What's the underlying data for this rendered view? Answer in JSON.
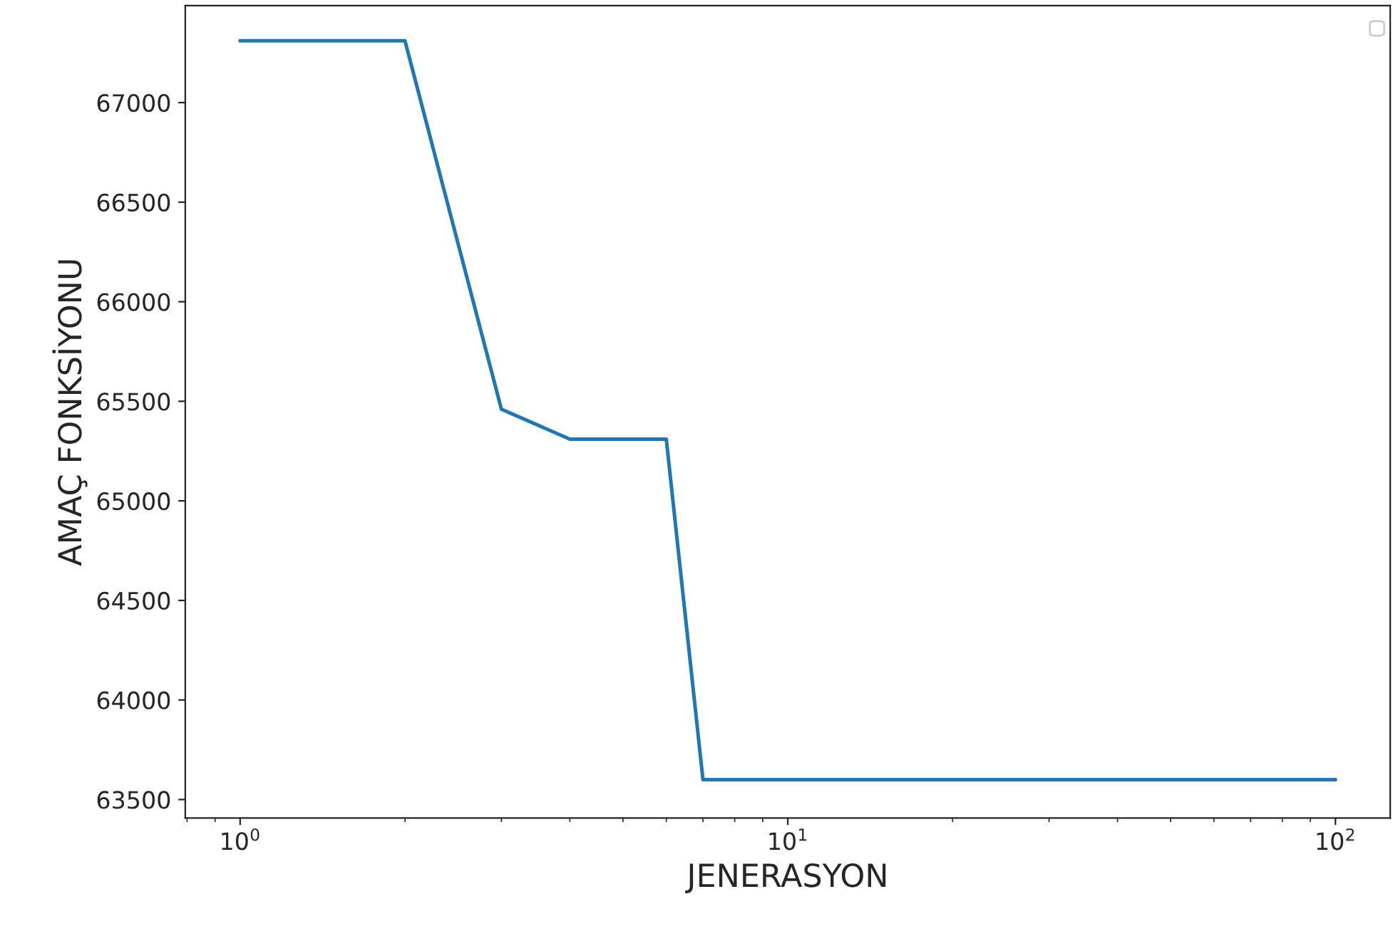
{
  "chart_data": {
    "type": "line",
    "xlabel": "JENERASYON",
    "ylabel": "AMAÇ FONKSİYONU",
    "x": [
      1,
      2,
      3,
      4,
      5,
      6,
      7,
      10,
      20,
      50,
      100
    ],
    "series": [
      {
        "color": "#1f77b4",
        "values": [
          67310,
          67310,
          65460,
          65310,
          65310,
          65310,
          63600,
          63600,
          63600,
          63600,
          63600
        ]
      }
    ],
    "log": "x",
    "xlim": [
      0.794,
      125.9
    ],
    "xticks": [
      {
        "value": 1,
        "label": "10$^{0}$"
      },
      {
        "value": 10,
        "label": "10$^{1}$"
      },
      {
        "value": 100,
        "label": "10$^{2}$"
      }
    ],
    "ylim": [
      63407,
      67487
    ],
    "yticks": [
      63500,
      64000,
      64500,
      65000,
      65500,
      66000,
      66500,
      67000
    ],
    "grid": false,
    "marker": "none",
    "line_style": "solid"
  }
}
